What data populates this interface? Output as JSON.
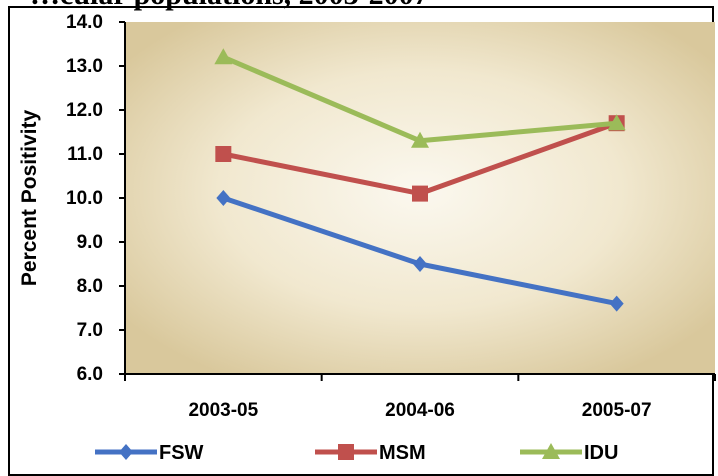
{
  "header": {
    "clipped_title": "…cular populations, 2003-2007"
  },
  "chart_data": {
    "type": "line",
    "title": "",
    "xlabel": "",
    "ylabel": "Percent Positivity",
    "categories": [
      "2003-05",
      "2004-06",
      "2005-07"
    ],
    "ylim": [
      6.0,
      14.0
    ],
    "yticks": [
      "6.0",
      "7.0",
      "8.0",
      "9.0",
      "10.0",
      "11.0",
      "12.0",
      "13.0",
      "14.0"
    ],
    "grid": false,
    "legend_position": "bottom",
    "series": [
      {
        "name": "FSW",
        "values": [
          10.0,
          8.5,
          7.6
        ],
        "color": "#4472C4",
        "marker": "diamond"
      },
      {
        "name": "MSM",
        "values": [
          11.0,
          10.1,
          11.7
        ],
        "color": "#C0504D",
        "marker": "square"
      },
      {
        "name": "IDU",
        "values": [
          13.2,
          11.3,
          11.7
        ],
        "color": "#9BBB59",
        "marker": "triangle"
      }
    ]
  }
}
